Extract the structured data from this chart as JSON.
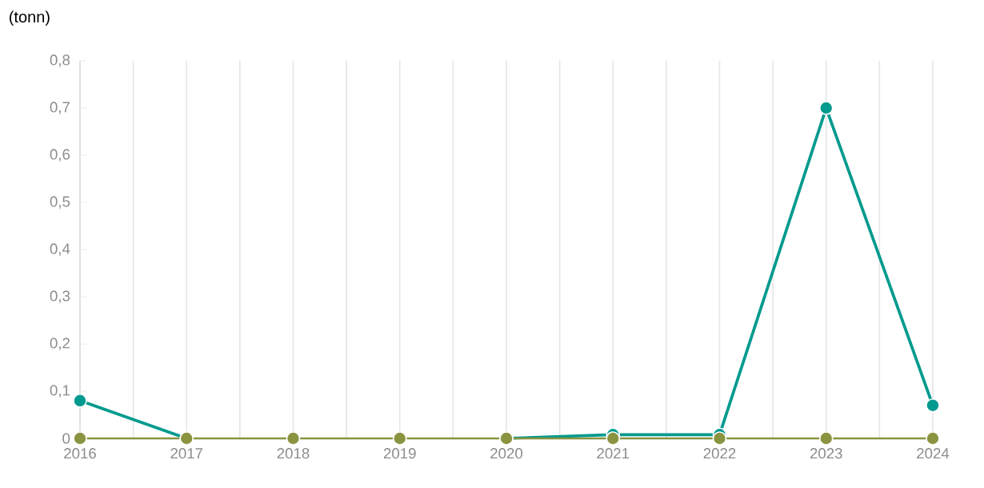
{
  "chart_data": {
    "type": "line",
    "ylabel": "(tonn)",
    "x": [
      2016,
      2017,
      2018,
      2019,
      2020,
      2021,
      2022,
      2023,
      2024
    ],
    "xlim": [
      2016,
      2024
    ],
    "xticks": [
      2016,
      {
        "value": 2016.5,
        "label": null
      },
      2017,
      {
        "value": 2017.5,
        "label": null
      },
      2018,
      {
        "value": 2018.5,
        "label": null
      },
      2019,
      {
        "value": 2019.5,
        "label": null
      },
      2020,
      {
        "value": 2020.5,
        "label": null
      },
      2021,
      {
        "value": 2021.5,
        "label": null
      },
      2022,
      {
        "value": 2022.5,
        "label": null
      },
      2023,
      {
        "value": 2023.5,
        "label": null
      },
      2024
    ],
    "ylim": [
      0,
      0.8
    ],
    "yticks": [
      0,
      {
        "value": 0.1,
        "label": "0,1"
      },
      {
        "value": 0.2,
        "label": "0,2"
      },
      {
        "value": 0.3,
        "label": "0,3"
      },
      {
        "value": 0.4,
        "label": "0,4"
      },
      {
        "value": 0.5,
        "label": "0,5"
      },
      {
        "value": 0.6,
        "label": "0,6"
      },
      {
        "value": 0.7,
        "label": "0,7"
      },
      {
        "value": 0.8,
        "label": "0,8"
      }
    ],
    "series": [
      {
        "color": "#009a8e",
        "values": [
          0.08,
          0,
          null,
          null,
          0,
          0.008,
          0.008,
          0.7,
          0.07
        ]
      },
      {
        "color": "#8a9440",
        "values": [
          0,
          0,
          0,
          0,
          0,
          0,
          0,
          0,
          0
        ]
      }
    ],
    "grid": "x",
    "marker": "circle",
    "line_style": "solid"
  }
}
